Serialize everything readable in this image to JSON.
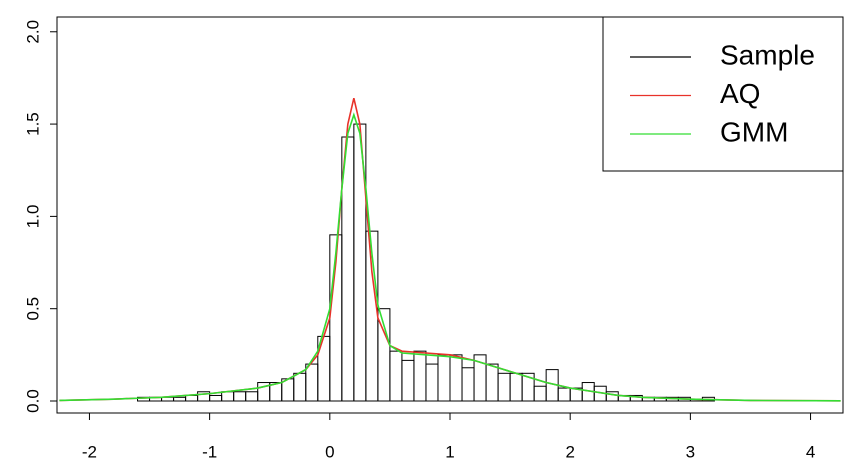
{
  "chart_data": {
    "type": "histogram",
    "name": "Sample",
    "color": "#000000",
    "bins": [
      -1.6,
      -1.5,
      -1.4,
      -1.3,
      -1.2,
      -1.1,
      -1.0,
      -0.9,
      -0.8,
      -0.7,
      -0.6,
      -0.5,
      -0.4,
      -0.3,
      -0.2,
      -0.1,
      0.0,
      0.1,
      0.2,
      0.3,
      0.4,
      0.5,
      0.6,
      0.7,
      0.8,
      0.9,
      1.0,
      1.1,
      1.2,
      1.3,
      1.4,
      1.5,
      1.6,
      1.7,
      1.8,
      1.9,
      2.0,
      2.1,
      2.2,
      2.3,
      2.4,
      2.5,
      2.6,
      2.7,
      2.8,
      2.9,
      3.0,
      3.1,
      3.2
    ],
    "counts": [
      0.02,
      0.02,
      0.02,
      0.02,
      0.03,
      0.05,
      0.03,
      0.05,
      0.05,
      0.05,
      0.1,
      0.1,
      0.12,
      0.15,
      0.2,
      0.35,
      0.9,
      1.43,
      1.5,
      0.92,
      0.5,
      0.27,
      0.22,
      0.27,
      0.2,
      0.25,
      0.25,
      0.18,
      0.25,
      0.2,
      0.15,
      0.15,
      0.15,
      0.08,
      0.17,
      0.07,
      0.07,
      0.1,
      0.08,
      0.05,
      0.03,
      0.03,
      0.02,
      0.02,
      0.02,
      0.02,
      0.01,
      0.02
    ],
    "lines": [
      {
        "name": "AQ",
        "color": "#e8322a",
        "x": [
          -2.25,
          -1.8,
          -1.4,
          -1.0,
          -0.6,
          -0.4,
          -0.2,
          -0.1,
          0,
          0.05,
          0.1,
          0.15,
          0.2,
          0.25,
          0.3,
          0.35,
          0.4,
          0.5,
          0.6,
          0.8,
          1.0,
          1.2,
          1.4,
          1.6,
          1.8,
          2.0,
          2.2,
          2.4,
          2.6,
          3.0,
          3.5,
          4.25
        ],
        "values": [
          0.003,
          0.01,
          0.02,
          0.04,
          0.07,
          0.1,
          0.17,
          0.25,
          0.45,
          0.75,
          1.15,
          1.5,
          1.64,
          1.5,
          1.1,
          0.7,
          0.45,
          0.3,
          0.27,
          0.26,
          0.25,
          0.22,
          0.18,
          0.14,
          0.1,
          0.07,
          0.05,
          0.03,
          0.02,
          0.01,
          0.003,
          0.001
        ]
      },
      {
        "name": "GMM",
        "color": "#33dd33",
        "x": [
          -2.25,
          -1.8,
          -1.4,
          -1.0,
          -0.6,
          -0.4,
          -0.2,
          -0.1,
          0,
          0.05,
          0.1,
          0.15,
          0.2,
          0.25,
          0.3,
          0.35,
          0.4,
          0.5,
          0.6,
          0.8,
          1.0,
          1.2,
          1.4,
          1.6,
          1.8,
          2.0,
          2.2,
          2.4,
          2.6,
          3.0,
          3.5,
          4.25
        ],
        "values": [
          0.003,
          0.01,
          0.02,
          0.04,
          0.07,
          0.1,
          0.17,
          0.27,
          0.5,
          0.8,
          1.15,
          1.45,
          1.55,
          1.45,
          1.15,
          0.8,
          0.52,
          0.3,
          0.26,
          0.25,
          0.24,
          0.22,
          0.18,
          0.14,
          0.1,
          0.07,
          0.05,
          0.03,
          0.02,
          0.01,
          0.003,
          0.001
        ]
      }
    ],
    "xlim": [
      -2.27,
      4.27
    ],
    "ylim": [
      -0.065,
      2.08
    ],
    "xticks": [
      -2,
      -1,
      0,
      1,
      2,
      3,
      4
    ],
    "yticks": [
      {
        "value": 0,
        "label": "0.0"
      },
      {
        "value": 0.5,
        "label": "0.5"
      },
      {
        "value": 1,
        "label": "1.0"
      },
      {
        "value": 1.5,
        "label": "1.5"
      },
      {
        "value": 2,
        "label": "2.0"
      }
    ],
    "legend": "topright"
  }
}
